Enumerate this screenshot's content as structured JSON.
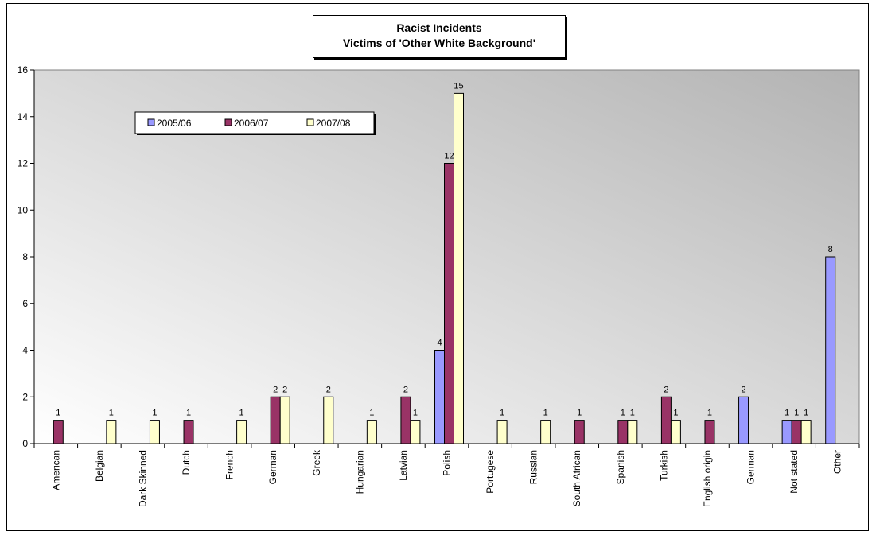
{
  "chart_data": {
    "type": "bar",
    "title": "Racist Incidents",
    "subtitle": "Victims of 'Other White Background'",
    "xlabel": "",
    "ylabel": "",
    "ylim": [
      0,
      16
    ],
    "yticks": [
      0,
      2,
      4,
      6,
      8,
      10,
      12,
      14,
      16
    ],
    "grid": false,
    "legend_position": "top-left",
    "categories": [
      "American",
      "Belgian",
      "Dark Skinned",
      "Dutch",
      "French",
      "German",
      "Greek",
      "Hungarian",
      "Latvian",
      "Polish",
      "Portugese",
      "Russian",
      "South African",
      "Spanish",
      "Turkish",
      "English origin",
      "German",
      "Not stated",
      "Other"
    ],
    "series": [
      {
        "name": "2005/06",
        "color": "#9999ff",
        "values": [
          null,
          null,
          null,
          null,
          null,
          null,
          null,
          null,
          null,
          4,
          null,
          null,
          null,
          null,
          null,
          null,
          2,
          1,
          8
        ]
      },
      {
        "name": "2006/07",
        "color": "#993366",
        "values": [
          1,
          null,
          null,
          1,
          null,
          2,
          null,
          null,
          2,
          12,
          null,
          null,
          1,
          1,
          2,
          1,
          null,
          1,
          null
        ]
      },
      {
        "name": "2007/08",
        "color": "#ffffcc",
        "values": [
          null,
          1,
          1,
          null,
          1,
          2,
          2,
          1,
          1,
          15,
          1,
          1,
          null,
          1,
          1,
          null,
          null,
          1,
          null
        ]
      }
    ]
  }
}
